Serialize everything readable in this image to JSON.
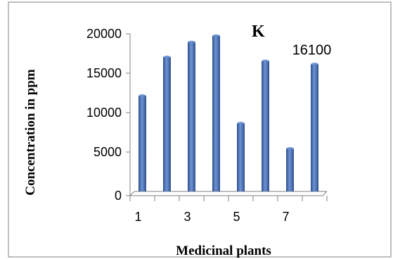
{
  "chart_data": {
    "type": "bar",
    "title": "K",
    "xlabel": "Medicinal plants",
    "ylabel": "Concentration in ppm",
    "categories": [
      1,
      2,
      3,
      4,
      5,
      6,
      7,
      8
    ],
    "values": [
      12100,
      17000,
      18900,
      19700,
      8600,
      16500,
      5400,
      16100
    ],
    "x_tick_labels": [
      "1",
      "3",
      "5",
      "7"
    ],
    "y_tick_labels": [
      "0",
      "5000",
      "10000",
      "15000",
      "20000"
    ],
    "ylim": [
      0,
      20000
    ],
    "grid": false,
    "data_labels": [
      {
        "category": 8,
        "text": "16100"
      }
    ],
    "bar_color": "#4a72b8",
    "bar_highlight": "#6f95d6",
    "bar_shadow": "#2e4f8c"
  }
}
